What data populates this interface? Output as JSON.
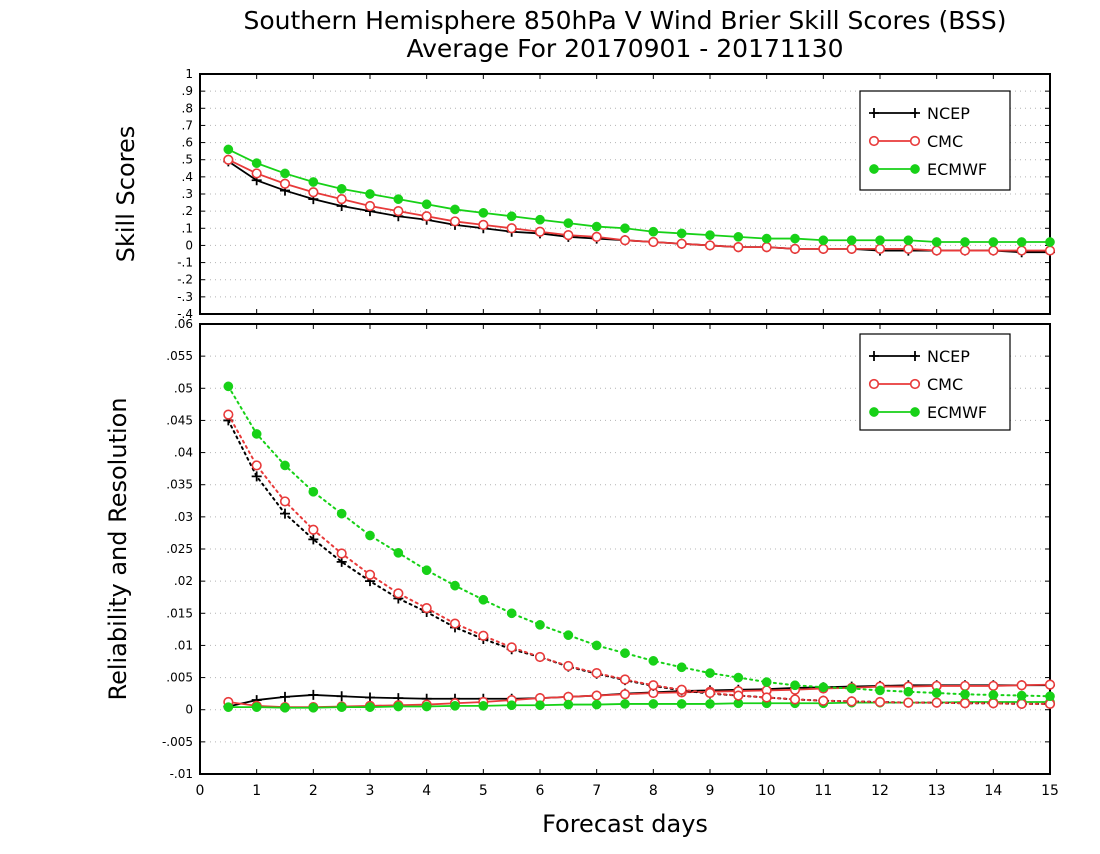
{
  "title": {
    "line1": "Southern Hemisphere 850hPa V Wind Brier Skill Scores (BSS)",
    "line2": "Average For 20170901 - 20171130"
  },
  "xlabel": "Forecast days",
  "colors": {
    "NCEP": "#000000",
    "CMC": "#e83a3a",
    "ECMWF": "#17d117"
  },
  "chart_data": [
    {
      "type": "line",
      "panel": "top",
      "ylabel": "Skill Scores",
      "xlim": [
        0,
        15
      ],
      "ylim": [
        -0.4,
        1
      ],
      "xticks": [
        0,
        1,
        2,
        3,
        4,
        5,
        6,
        7,
        8,
        9,
        10,
        11,
        12,
        13,
        14,
        15
      ],
      "yticks": [
        -0.4,
        -0.3,
        -0.2,
        -0.1,
        0,
        0.1,
        0.2,
        0.3,
        0.4,
        0.5,
        0.6,
        0.7,
        0.8,
        0.9,
        1
      ],
      "grid": "horizontal dotted",
      "legend_position": "top-right",
      "legend": [
        "NCEP",
        "CMC",
        "ECMWF"
      ],
      "x": [
        0.5,
        1,
        1.5,
        2,
        2.5,
        3,
        3.5,
        4,
        4.5,
        5,
        5.5,
        6,
        6.5,
        7,
        7.5,
        8,
        8.5,
        9,
        9.5,
        10,
        10.5,
        11,
        11.5,
        12,
        12.5,
        13,
        13.5,
        14,
        14.5,
        15
      ],
      "series": [
        {
          "name": "NCEP",
          "marker": "plus",
          "style": "solid",
          "values": [
            0.49,
            0.38,
            0.32,
            0.27,
            0.23,
            0.2,
            0.17,
            0.15,
            0.12,
            0.1,
            0.08,
            0.07,
            0.05,
            0.04,
            0.03,
            0.02,
            0.01,
            0,
            -0.01,
            -0.01,
            -0.02,
            -0.02,
            -0.02,
            -0.03,
            -0.03,
            -0.03,
            -0.03,
            -0.03,
            -0.04,
            -0.04
          ]
        },
        {
          "name": "CMC",
          "marker": "open-circle",
          "style": "solid",
          "values": [
            0.5,
            0.42,
            0.36,
            0.31,
            0.27,
            0.23,
            0.2,
            0.17,
            0.14,
            0.12,
            0.1,
            0.08,
            0.06,
            0.05,
            0.03,
            0.02,
            0.01,
            0,
            -0.01,
            -0.01,
            -0.02,
            -0.02,
            -0.02,
            -0.02,
            -0.02,
            -0.03,
            -0.03,
            -0.03,
            -0.03,
            -0.03
          ]
        },
        {
          "name": "ECMWF",
          "marker": "filled-circle",
          "style": "solid",
          "values": [
            0.56,
            0.48,
            0.42,
            0.37,
            0.33,
            0.3,
            0.27,
            0.24,
            0.21,
            0.19,
            0.17,
            0.15,
            0.13,
            0.11,
            0.1,
            0.08,
            0.07,
            0.06,
            0.05,
            0.04,
            0.04,
            0.03,
            0.03,
            0.03,
            0.03,
            0.02,
            0.02,
            0.02,
            0.02,
            0.02
          ]
        }
      ]
    },
    {
      "type": "line",
      "panel": "bottom",
      "ylabel": "Reliability and Resolution",
      "xlim": [
        0,
        15
      ],
      "ylim": [
        -0.01,
        0.06
      ],
      "xticks": [
        0,
        1,
        2,
        3,
        4,
        5,
        6,
        7,
        8,
        9,
        10,
        11,
        12,
        13,
        14,
        15
      ],
      "yticks": [
        -0.01,
        -0.005,
        0,
        0.005,
        0.01,
        0.015,
        0.02,
        0.025,
        0.03,
        0.035,
        0.04,
        0.045,
        0.05,
        0.055,
        0.06
      ],
      "grid": "horizontal dotted",
      "legend_position": "top-right",
      "legend": [
        "NCEP",
        "CMC",
        "ECMWF"
      ],
      "x": [
        0.5,
        1,
        1.5,
        2,
        2.5,
        3,
        3.5,
        4,
        4.5,
        5,
        5.5,
        6,
        6.5,
        7,
        7.5,
        8,
        8.5,
        9,
        9.5,
        10,
        10.5,
        11,
        11.5,
        12,
        12.5,
        13,
        13.5,
        14,
        14.5,
        15
      ],
      "series": [
        {
          "name": "NCEP",
          "marker": "plus",
          "style": "solid",
          "role": "reliability",
          "values": [
            0.0005,
            0.0015,
            0.002,
            0.0023,
            0.0021,
            0.0019,
            0.0018,
            0.0017,
            0.0017,
            0.0017,
            0.0017,
            0.0018,
            0.002,
            0.0022,
            0.0025,
            0.0027,
            0.0029,
            0.003,
            0.0031,
            0.0032,
            0.0034,
            0.0035,
            0.0036,
            0.0037,
            0.0038,
            0.0038,
            0.0038,
            0.0038,
            0.0038,
            0.0038
          ]
        },
        {
          "name": "CMC",
          "marker": "open-circle",
          "style": "solid",
          "role": "reliability",
          "values": [
            0.0012,
            0.0006,
            0.0004,
            0.0004,
            0.0005,
            0.0006,
            0.0007,
            0.0008,
            0.001,
            0.0012,
            0.0015,
            0.0018,
            0.002,
            0.0022,
            0.0024,
            0.0026,
            0.0027,
            0.0028,
            0.0029,
            0.003,
            0.0031,
            0.0033,
            0.0034,
            0.0036,
            0.0036,
            0.0037,
            0.0037,
            0.0037,
            0.0038,
            0.0039
          ]
        },
        {
          "name": "ECMWF",
          "marker": "filled-circle",
          "style": "solid",
          "role": "reliability",
          "values": [
            0.0004,
            0.0004,
            0.0003,
            0.0003,
            0.0004,
            0.0004,
            0.0005,
            0.0005,
            0.0006,
            0.0006,
            0.0007,
            0.0007,
            0.0008,
            0.0008,
            0.0009,
            0.0009,
            0.0009,
            0.0009,
            0.001,
            0.001,
            0.001,
            0.001,
            0.0011,
            0.0011,
            0.0011,
            0.0011,
            0.0012,
            0.0012,
            0.0012,
            0.0012
          ]
        },
        {
          "name": "NCEP",
          "marker": "plus",
          "style": "dotted",
          "role": "resolution",
          "values": [
            0.045,
            0.0363,
            0.0305,
            0.0265,
            0.023,
            0.02,
            0.0173,
            0.0152,
            0.0128,
            0.011,
            0.0094,
            0.0082,
            0.0067,
            0.0056,
            0.0046,
            0.0037,
            0.003,
            0.0025,
            0.0022,
            0.0019,
            0.0016,
            0.0014,
            0.0013,
            0.0012,
            0.0011,
            0.0011,
            0.001,
            0.001,
            0.0009,
            0.0009
          ]
        },
        {
          "name": "CMC",
          "marker": "open-circle",
          "style": "dotted",
          "role": "resolution",
          "values": [
            0.0459,
            0.038,
            0.0324,
            0.028,
            0.0243,
            0.021,
            0.0181,
            0.0158,
            0.0134,
            0.0115,
            0.0097,
            0.0082,
            0.0068,
            0.0057,
            0.0047,
            0.0038,
            0.0031,
            0.0026,
            0.0022,
            0.0019,
            0.0016,
            0.0014,
            0.0013,
            0.0012,
            0.0011,
            0.0011,
            0.001,
            0.001,
            0.0009,
            0.0009
          ]
        },
        {
          "name": "ECMWF",
          "marker": "filled-circle",
          "style": "dotted",
          "role": "resolution",
          "values": [
            0.0503,
            0.0429,
            0.038,
            0.0339,
            0.0305,
            0.0271,
            0.0244,
            0.0217,
            0.0193,
            0.0171,
            0.015,
            0.0132,
            0.0116,
            0.01,
            0.0088,
            0.0076,
            0.0066,
            0.0057,
            0.005,
            0.0043,
            0.0038,
            0.0035,
            0.0033,
            0.003,
            0.0028,
            0.0026,
            0.0024,
            0.0023,
            0.0022,
            0.0021
          ]
        }
      ]
    }
  ]
}
